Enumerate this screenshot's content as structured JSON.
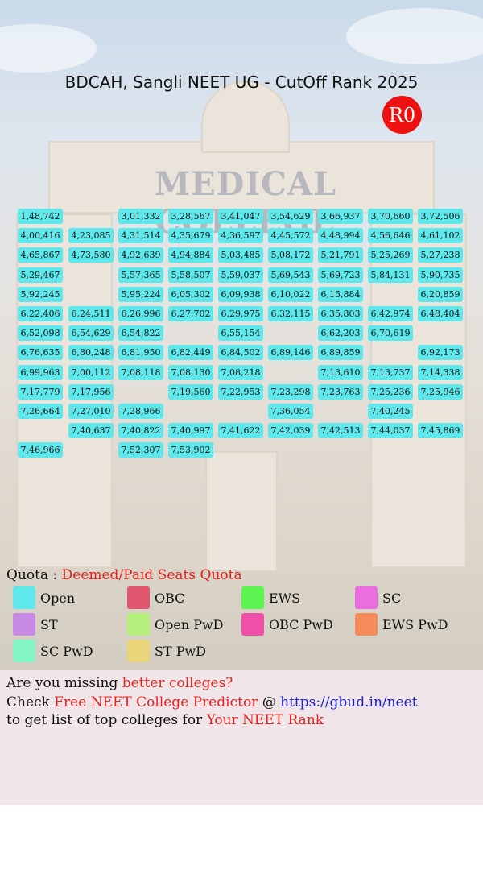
{
  "title": "BDCAH, Sangli NEET UG - CutOff Rank 2025",
  "round_badge": "R0",
  "background_text": "MEDICAL COLLEGE",
  "grid_rows": [
    [
      "1,48,742",
      "",
      "3,01,332",
      "3,28,567",
      "3,41,047",
      "3,54,629",
      "3,66,937",
      "3,70,660",
      "3,72,506"
    ],
    [
      "4,00,416",
      "4,23,085",
      "4,31,514",
      "4,35,679",
      "4,36,597",
      "4,45,572",
      "4,48,994",
      "4,56,646",
      "4,61,102"
    ],
    [
      "4,65,867",
      "4,73,580",
      "4,92,639",
      "4,94,884",
      "5,03,485",
      "5,08,172",
      "5,21,791",
      "5,25,269",
      "5,27,238"
    ],
    [
      "5,29,467",
      "",
      "5,57,365",
      "5,58,507",
      "5,59,037",
      "5,69,543",
      "5,69,723",
      "5,84,131",
      "5,90,735"
    ],
    [
      "5,92,245",
      "",
      "5,95,224",
      "6,05,302",
      "6,09,938",
      "6,10,022",
      "6,15,884",
      "",
      "6,20,859"
    ],
    [
      "6,22,406",
      "6,24,511",
      "6,26,996",
      "6,27,702",
      "6,29,975",
      "6,32,115",
      "6,35,803",
      "6,42,974",
      "6,48,404"
    ],
    [
      "6,52,098",
      "6,54,629",
      "6,54,822",
      "",
      "6,55,154",
      "",
      "6,62,203",
      "6,70,619",
      ""
    ],
    [
      "6,76,635",
      "6,80,248",
      "6,81,950",
      "6,82,449",
      "6,84,502",
      "6,89,146",
      "6,89,859",
      "",
      "6,92,173"
    ],
    [
      "6,99,963",
      "7,00,112",
      "7,08,118",
      "7,08,130",
      "7,08,218",
      "",
      "7,13,610",
      "7,13,737",
      "7,14,338"
    ],
    [
      "7,17,779",
      "7,17,956",
      "",
      "7,19,560",
      "7,22,953",
      "7,23,298",
      "7,23,763",
      "7,25,236",
      "7,25,946"
    ],
    [
      "7,26,664",
      "7,27,010",
      "7,28,966",
      "",
      "",
      "7,36,054",
      "",
      "7,40,245",
      ""
    ],
    [
      "",
      "7,40,637",
      "7,40,822",
      "7,40,997",
      "7,41,622",
      "7,42,039",
      "7,42,513",
      "7,44,037",
      "7,45,869"
    ],
    [
      "7,46,966",
      "",
      "7,52,307",
      "7,53,902",
      "",
      "",
      "",
      "",
      ""
    ]
  ],
  "quota": {
    "label": "Quota :",
    "value": "Deemed/Paid Seats Quota"
  },
  "legend": [
    {
      "label": "Open",
      "color": "#5ee8ec"
    },
    {
      "label": "OBC",
      "color": "#e0566e"
    },
    {
      "label": "EWS",
      "color": "#5cf552"
    },
    {
      "label": "SC",
      "color": "#ea6ee0"
    },
    {
      "label": "ST",
      "color": "#c98ae6"
    },
    {
      "label": "Open PwD",
      "color": "#b3ef7a"
    },
    {
      "label": "OBC PwD",
      "color": "#ef4fa6"
    },
    {
      "label": "EWS PwD",
      "color": "#f58a5a"
    },
    {
      "label": "SC PwD",
      "color": "#84f5c4"
    },
    {
      "label": "ST PwD",
      "color": "#e9d57a"
    }
  ],
  "promo": {
    "line1_prefix": "Are you missing ",
    "line1_highlight": "better colleges?",
    "line2_prefix": "Check ",
    "line2_highlight": "Free NEET College Predictor",
    "line2_at": " @ ",
    "line2_link": "https://gbud.in/neet",
    "line3_prefix": "to get list of top colleges for ",
    "line3_highlight": "Your NEET Rank"
  }
}
